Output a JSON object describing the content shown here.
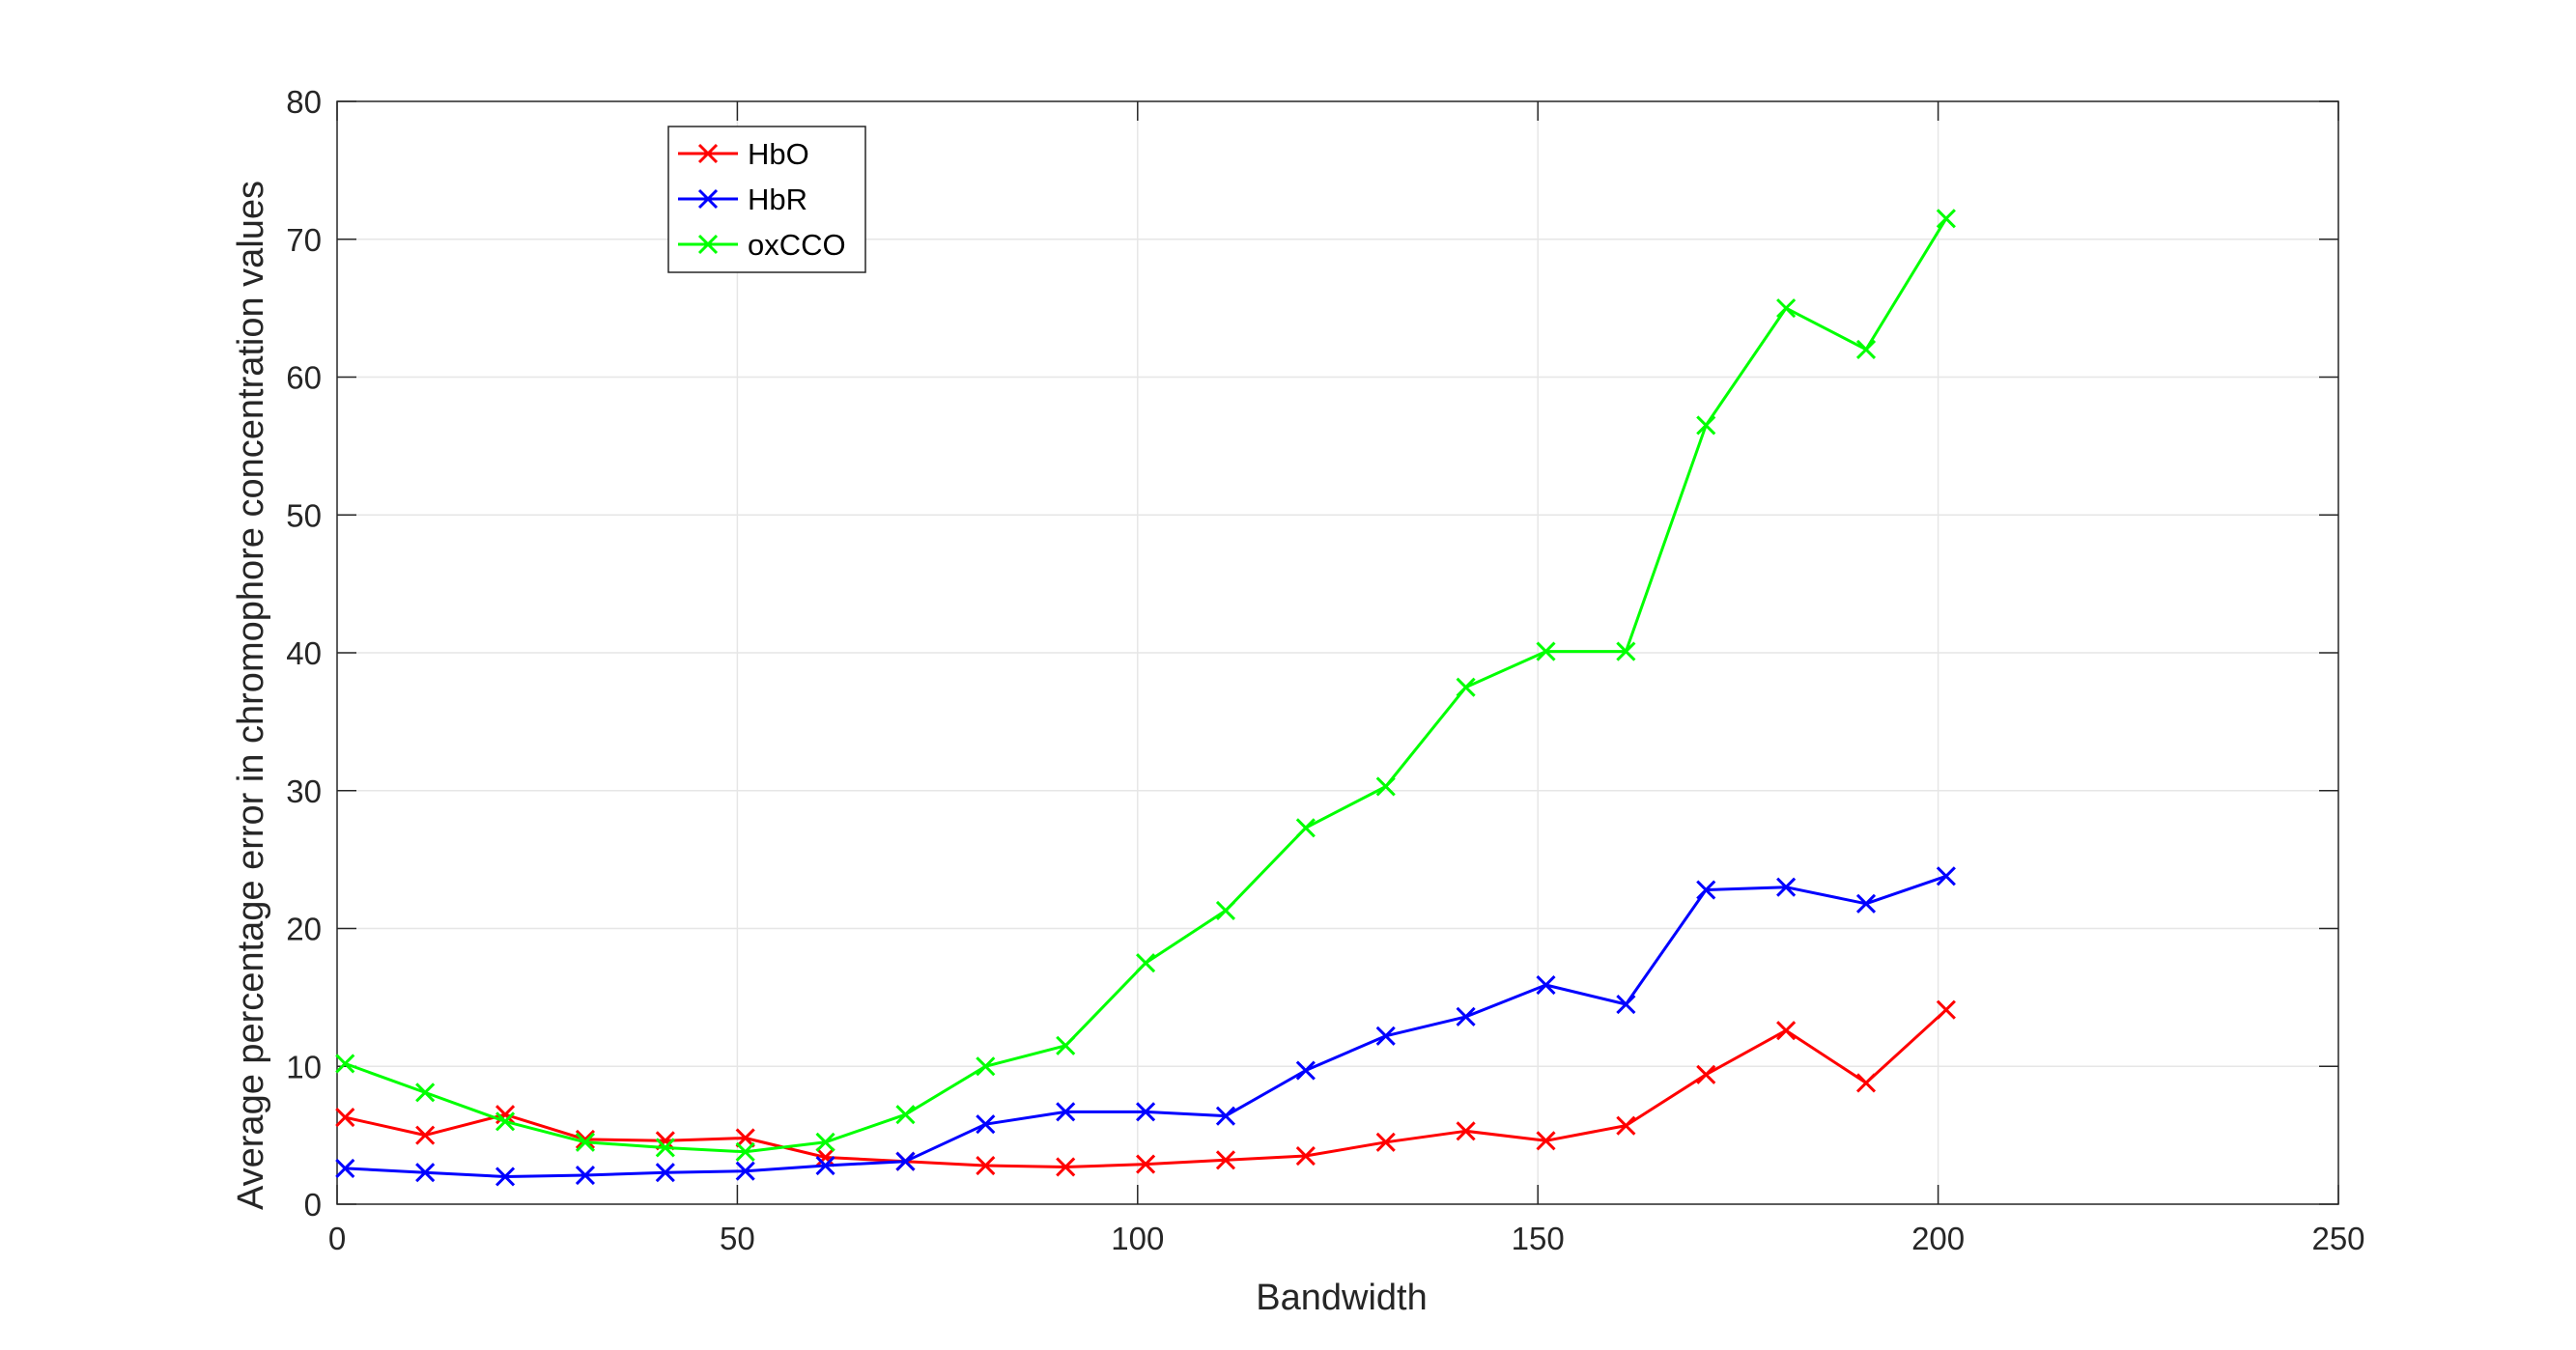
{
  "chart_data": {
    "type": "line",
    "title": "",
    "xlabel": "Bandwidth",
    "ylabel": "Average percentage error in chromophore concentration values",
    "xlim": [
      0,
      250
    ],
    "ylim": [
      0,
      80
    ],
    "xticks": [
      0,
      50,
      100,
      150,
      200,
      250
    ],
    "yticks": [
      0,
      10,
      20,
      30,
      40,
      50,
      60,
      70,
      80
    ],
    "xtick_labels": [
      "0",
      "50",
      "100",
      "150",
      "200",
      "250"
    ],
    "ytick_labels": [
      "0",
      "10",
      "20",
      "30",
      "40",
      "50",
      "60",
      "70",
      "80"
    ],
    "grid": true,
    "legend_position": "top-left",
    "marker": "x",
    "x": [
      1,
      11,
      21,
      31,
      41,
      51,
      61,
      71,
      81,
      91,
      101,
      111,
      121,
      131,
      141,
      151,
      161,
      171,
      181,
      191,
      201
    ],
    "series": [
      {
        "name": "HbO",
        "color": "#ff0000",
        "values": [
          6.3,
          5.0,
          6.5,
          4.7,
          4.6,
          4.8,
          3.4,
          3.1,
          2.8,
          2.7,
          2.9,
          3.2,
          3.5,
          4.5,
          5.3,
          4.6,
          5.7,
          9.4,
          12.6,
          8.8,
          14.1
        ]
      },
      {
        "name": "HbR",
        "color": "#0000ff",
        "values": [
          2.6,
          2.3,
          2.0,
          2.1,
          2.3,
          2.4,
          2.8,
          3.1,
          5.8,
          6.7,
          6.7,
          6.4,
          9.7,
          12.2,
          13.6,
          15.9,
          14.5,
          22.8,
          23.0,
          21.8,
          23.8
        ]
      },
      {
        "name": "oxCCO",
        "color": "#00ff00",
        "values": [
          10.2,
          8.1,
          6.0,
          4.5,
          4.1,
          3.8,
          4.5,
          6.5,
          10.0,
          11.5,
          17.5,
          21.3,
          27.3,
          30.3,
          37.5,
          40.1,
          40.1,
          56.5,
          65.0,
          62.0,
          71.5
        ]
      }
    ]
  }
}
